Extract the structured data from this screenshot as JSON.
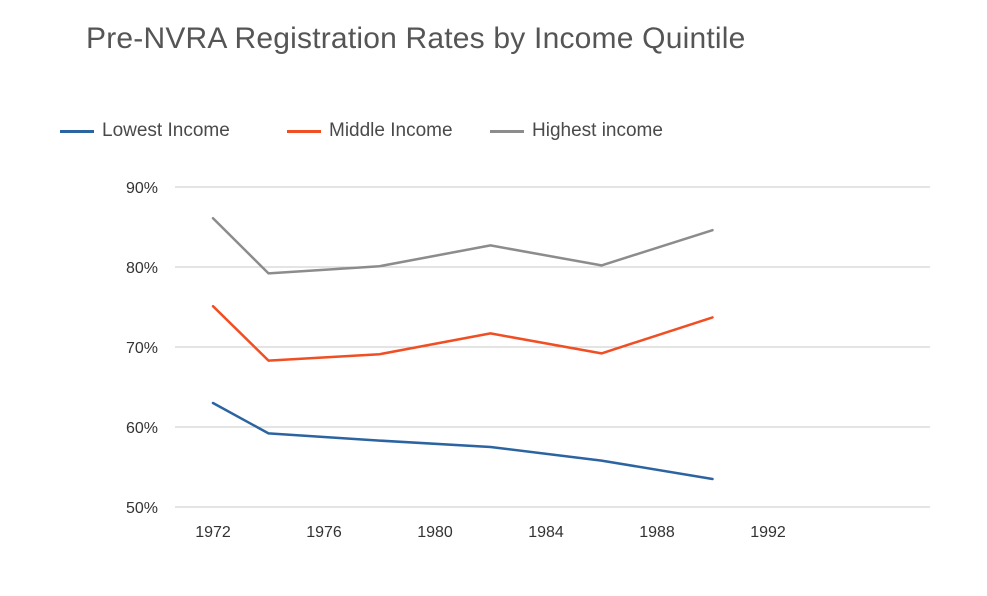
{
  "chart_data": {
    "type": "line",
    "title": "Pre-NVRA Registration Rates by Income Quintile",
    "xlabel": "",
    "ylabel": "",
    "x": [
      1972,
      1976,
      1980,
      1984,
      1988,
      1992
    ],
    "x_tick_labels": [
      "1972",
      "1976",
      "1980",
      "1984",
      "1988",
      "1992"
    ],
    "ylim": [
      50,
      90
    ],
    "y_ticks": [
      50,
      60,
      70,
      80,
      90
    ],
    "y_tick_labels": [
      "50%",
      "60%",
      "70%",
      "80%",
      "90%"
    ],
    "grid": "horizontal",
    "legend": "top-left",
    "series": [
      {
        "name": "Lowest Income",
        "color": "#2b64a0",
        "points": [
          [
            1972,
            63.0
          ],
          [
            1974,
            59.2
          ],
          [
            1978,
            58.3
          ],
          [
            1982,
            57.5
          ],
          [
            1986,
            55.8
          ],
          [
            1990,
            53.5
          ]
        ]
      },
      {
        "name": "Middle Income",
        "color": "#f04e23",
        "points": [
          [
            1972,
            75.1
          ],
          [
            1974,
            68.3
          ],
          [
            1978,
            69.1
          ],
          [
            1982,
            71.7
          ],
          [
            1986,
            69.2
          ],
          [
            1990,
            73.7
          ]
        ]
      },
      {
        "name": "Highest income",
        "color": "#8c8c8c",
        "points": [
          [
            1972,
            86.1
          ],
          [
            1974,
            79.2
          ],
          [
            1978,
            80.1
          ],
          [
            1982,
            82.7
          ],
          [
            1986,
            80.2
          ],
          [
            1990,
            84.6
          ]
        ]
      }
    ]
  }
}
